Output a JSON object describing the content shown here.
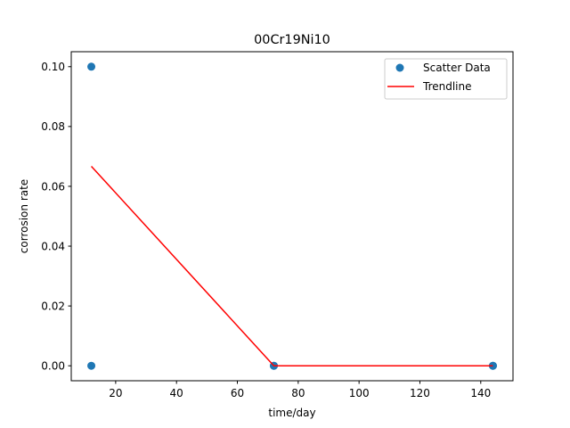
{
  "chart_data": {
    "type": "scatter",
    "title": "00Cr19Ni10",
    "xlabel": "time/day",
    "ylabel": "corrosion rate",
    "xlim": [
      5.4,
      150.6
    ],
    "ylim": [
      -0.005,
      0.105
    ],
    "xticks": [
      "20",
      "40",
      "60",
      "80",
      "100",
      "120",
      "140"
    ],
    "xtick_values": [
      20,
      40,
      60,
      80,
      100,
      120,
      140
    ],
    "yticks": [
      "0.00",
      "0.02",
      "0.04",
      "0.06",
      "0.08",
      "0.10"
    ],
    "ytick_values": [
      0,
      0.02,
      0.04,
      0.06,
      0.08,
      0.1
    ],
    "grid": false,
    "legend": "top-right",
    "scatter": {
      "name": "Scatter Data",
      "color": "#1f77b4",
      "x": [
        12,
        12,
        72,
        72,
        144,
        144
      ],
      "y": [
        0.1,
        0.0,
        0.0,
        0.0,
        0.0,
        0.0
      ]
    },
    "trendline": {
      "name": "Trendline",
      "color": "#ff0000",
      "x": [
        12,
        72,
        144
      ],
      "y": [
        0.0667,
        0.0,
        0.0
      ]
    }
  }
}
